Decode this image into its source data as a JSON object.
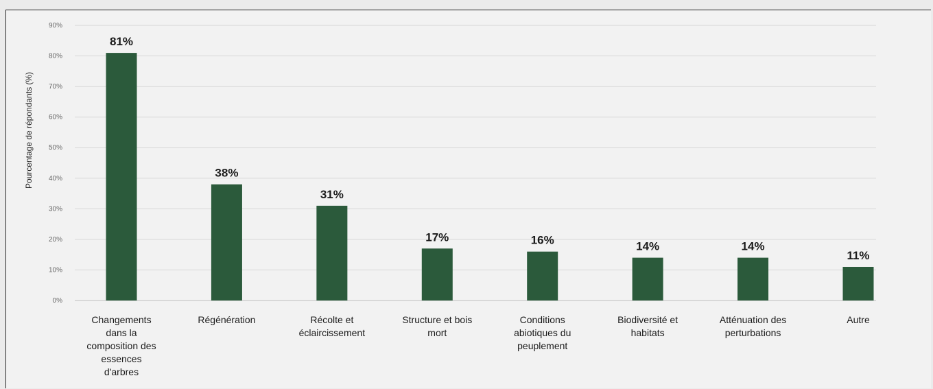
{
  "chart_data": {
    "type": "bar",
    "title": "",
    "xlabel": "",
    "ylabel": "Pourcentage de répondants (%)",
    "ylim": [
      0,
      90
    ],
    "yticks": [
      "0%",
      "10%",
      "20%",
      "30%",
      "40%",
      "50%",
      "60%",
      "70%",
      "80%",
      "90%"
    ],
    "grid": true,
    "legend": "none",
    "bar_color": "#2b5a3b",
    "categories": [
      [
        "Changements",
        "dans la",
        "composition des",
        "essences",
        "d'arbres"
      ],
      [
        "Régénération"
      ],
      [
        "Récolte et",
        "éclaircissement"
      ],
      [
        "Structure et bois",
        "mort"
      ],
      [
        "Conditions",
        "abiotiques du",
        "peuplement"
      ],
      [
        "Biodiversité et",
        "habitats"
      ],
      [
        "Atténuation des",
        "perturbations"
      ],
      [
        "Autre"
      ]
    ],
    "values": [
      81,
      38,
      31,
      17,
      16,
      14,
      14,
      11
    ],
    "data_labels": [
      "81%",
      "38%",
      "31%",
      "17%",
      "16%",
      "14%",
      "14%",
      "11%"
    ]
  }
}
